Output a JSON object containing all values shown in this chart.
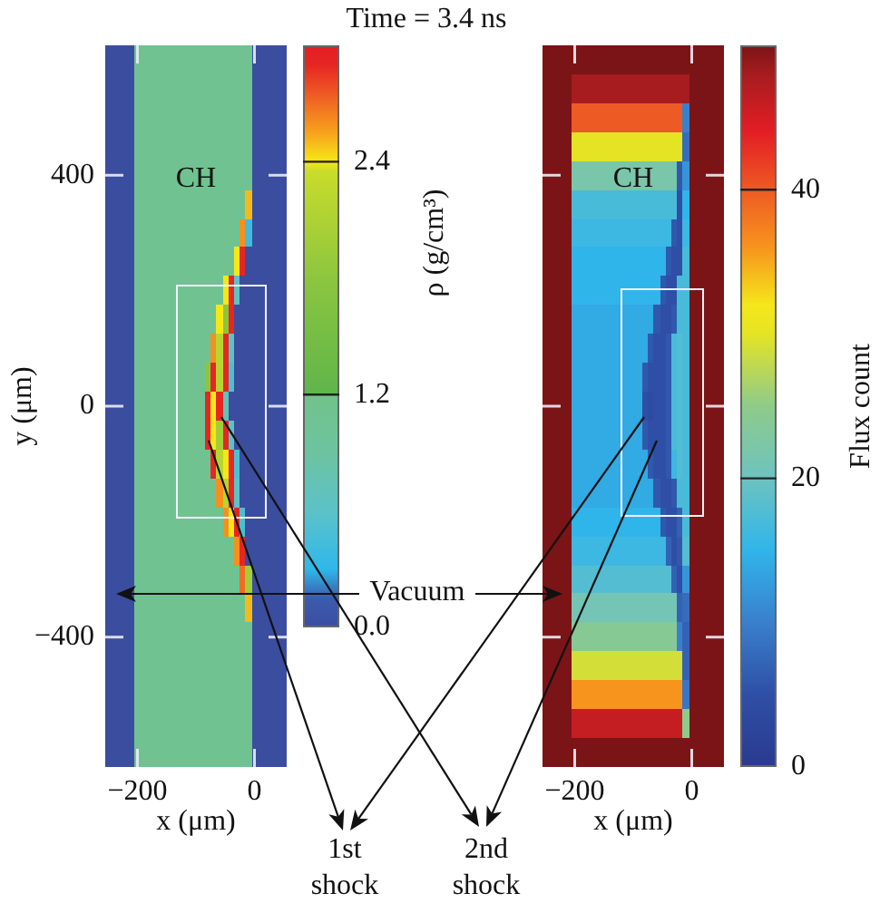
{
  "chart_data": [
    {
      "type": "heatmap",
      "xlabel": "x (μm)",
      "ylabel": "y (μm)",
      "clabel": "ρ (g/cm³)",
      "categories": [
        null,
        null,
        null,
        null,
        null,
        "−200",
        null,
        null,
        null,
        null,
        null,
        null,
        null,
        null,
        null,
        null,
        null,
        null,
        null,
        null,
        null,
        null,
        null,
        null,
        null,
        "0",
        null,
        null,
        null,
        null,
        null
      ],
      "y_categories": [
        null,
        null,
        null,
        null,
        "400",
        null,
        null,
        null,
        null,
        null,
        null,
        null,
        "0",
        null,
        null,
        null,
        null,
        null,
        null,
        null,
        "−400",
        null,
        null,
        null,
        null
      ],
      "cells": [
        [
          0,
          0,
          0,
          0,
          0,
          1.1,
          1.1,
          1.1,
          1.1,
          1.1,
          1.1,
          1.1,
          1.1,
          1.1,
          1.1,
          1.1,
          1.1,
          1.1,
          1.1,
          1.1,
          1.1,
          1.1,
          1.1,
          1.1,
          1.1,
          0,
          0,
          0,
          0,
          0,
          0
        ],
        [
          0,
          0,
          0,
          0,
          0,
          1.1,
          1.1,
          1.1,
          1.1,
          1.1,
          1.1,
          1.1,
          1.1,
          1.1,
          1.1,
          1.1,
          1.1,
          1.1,
          1.1,
          1.1,
          1.1,
          1.1,
          1.1,
          1.1,
          1.1,
          0,
          0,
          0,
          0,
          0,
          0
        ],
        [
          0,
          0,
          0,
          0,
          0,
          1.1,
          1.1,
          1.1,
          1.1,
          1.1,
          1.1,
          1.1,
          1.1,
          1.1,
          1.1,
          1.1,
          1.1,
          1.1,
          1.1,
          1.1,
          1.1,
          1.1,
          1.1,
          1.1,
          1.1,
          0,
          0,
          0,
          0,
          0,
          0
        ],
        [
          0,
          0,
          0,
          0,
          0,
          1.1,
          1.1,
          1.1,
          1.1,
          1.1,
          1.1,
          1.1,
          1.1,
          1.1,
          1.1,
          1.1,
          1.1,
          1.1,
          1.1,
          1.1,
          1.1,
          1.1,
          1.1,
          1.1,
          1.1,
          0,
          0,
          0,
          0,
          0,
          0
        ],
        [
          0,
          0,
          0,
          0,
          0,
          1.1,
          1.1,
          1.1,
          1.1,
          1.1,
          1.1,
          1.1,
          1.1,
          1.1,
          1.1,
          1.1,
          1.1,
          1.1,
          1.1,
          1.1,
          1.1,
          1.1,
          1.1,
          1.1,
          1.1,
          0,
          0,
          0,
          0,
          0,
          0
        ],
        [
          0,
          0,
          0,
          0,
          0,
          1.1,
          1.1,
          1.1,
          1.1,
          1.1,
          1.1,
          1.1,
          1.1,
          1.1,
          1.1,
          1.1,
          1.1,
          1.1,
          1.1,
          1.1,
          1.1,
          1.1,
          1.1,
          1.1,
          2.5,
          0,
          0,
          0,
          0,
          0,
          0
        ],
        [
          0,
          0,
          0,
          0,
          0,
          1.1,
          1.1,
          1.1,
          1.1,
          1.1,
          1.1,
          1.1,
          1.1,
          1.1,
          1.1,
          1.1,
          1.1,
          1.1,
          1.1,
          1.1,
          1.1,
          1.1,
          1.1,
          2.6,
          0.4,
          0,
          0,
          0,
          0,
          0,
          0
        ],
        [
          0,
          0,
          0,
          0,
          0,
          1.1,
          1.1,
          1.1,
          1.1,
          1.1,
          1.1,
          1.1,
          1.1,
          1.1,
          1.1,
          1.1,
          1.1,
          1.1,
          1.1,
          1.1,
          1.1,
          1.1,
          2.4,
          2.9,
          0,
          0,
          0,
          0,
          0,
          0,
          0
        ],
        [
          0,
          0,
          0,
          0,
          0,
          1.1,
          1.1,
          1.1,
          1.1,
          1.1,
          1.1,
          1.1,
          1.1,
          1.1,
          1.1,
          1.1,
          1.1,
          1.1,
          1.1,
          1.1,
          2.4,
          2.9,
          0.6,
          0,
          0,
          0,
          0,
          0,
          0,
          0,
          0
        ],
        [
          0,
          0,
          0,
          0,
          0,
          1.1,
          1.1,
          1.1,
          1.1,
          1.1,
          1.1,
          1.1,
          1.1,
          1.1,
          1.1,
          1.1,
          1.1,
          1.1,
          1.1,
          2.4,
          1.8,
          2.9,
          0,
          0,
          0,
          0,
          0,
          0,
          0,
          0,
          0
        ],
        [
          0,
          0,
          0,
          0,
          0,
          1.1,
          1.1,
          1.1,
          1.1,
          1.1,
          1.1,
          1.1,
          1.1,
          1.1,
          1.1,
          1.1,
          1.1,
          1.1,
          2.6,
          2.2,
          2.9,
          0.6,
          0,
          0,
          0,
          0,
          0,
          0,
          0,
          0,
          0
        ],
        [
          0,
          0,
          0,
          0,
          0,
          1.1,
          1.1,
          1.1,
          1.1,
          1.1,
          1.1,
          1.1,
          1.1,
          1.1,
          1.1,
          1.1,
          1.1,
          1.8,
          2.9,
          2.2,
          2.9,
          0.5,
          0,
          0,
          0,
          0,
          0,
          0,
          0,
          0,
          0
        ],
        [
          0,
          0,
          0,
          0,
          0,
          1.1,
          1.1,
          1.1,
          1.1,
          1.1,
          1.1,
          1.1,
          1.1,
          1.1,
          1.1,
          1.1,
          1.1,
          2.9,
          2.4,
          2.9,
          0.7,
          0,
          0,
          0,
          0,
          0,
          0,
          0,
          0,
          0,
          0
        ],
        [
          0,
          0,
          0,
          0,
          0,
          1.1,
          1.1,
          1.1,
          1.1,
          1.1,
          1.1,
          1.1,
          1.1,
          1.1,
          1.1,
          1.1,
          1.1,
          2.9,
          2.4,
          2.0,
          2.9,
          0.6,
          0,
          0,
          0,
          0,
          0,
          0,
          0,
          0,
          0
        ],
        [
          0,
          0,
          0,
          0,
          0,
          1.1,
          1.1,
          1.1,
          1.1,
          1.1,
          1.1,
          1.1,
          1.1,
          1.1,
          1.1,
          1.1,
          1.1,
          1.1,
          2.9,
          2.2,
          2.4,
          2.9,
          0.5,
          0,
          0,
          0,
          0,
          0,
          0,
          0,
          0
        ],
        [
          0,
          0,
          0,
          0,
          0,
          1.1,
          1.1,
          1.1,
          1.1,
          1.1,
          1.1,
          1.1,
          1.1,
          1.1,
          1.1,
          1.1,
          1.1,
          1.1,
          1.1,
          2.6,
          2.2,
          2.9,
          0.6,
          0,
          0,
          0,
          0,
          0,
          0,
          0,
          0
        ],
        [
          0,
          0,
          0,
          0,
          0,
          1.1,
          1.1,
          1.1,
          1.1,
          1.1,
          1.1,
          1.1,
          1.1,
          1.1,
          1.1,
          1.1,
          1.1,
          1.1,
          1.1,
          1.1,
          2.6,
          2.4,
          2.9,
          0.5,
          0,
          0,
          0,
          0,
          0,
          0,
          0
        ],
        [
          0,
          0,
          0,
          0,
          0,
          1.1,
          1.1,
          1.1,
          1.1,
          1.1,
          1.1,
          1.1,
          1.1,
          1.1,
          1.1,
          1.1,
          1.1,
          1.1,
          1.1,
          1.1,
          1.1,
          1.1,
          2.6,
          2.9,
          0,
          0,
          0,
          0,
          0,
          0,
          0
        ],
        [
          0,
          0,
          0,
          0,
          0,
          1.1,
          1.1,
          1.1,
          1.1,
          1.1,
          1.1,
          1.1,
          1.1,
          1.1,
          1.1,
          1.1,
          1.1,
          1.1,
          1.1,
          1.1,
          1.1,
          1.1,
          1.1,
          2.7,
          2.0,
          0,
          0,
          0,
          0,
          0,
          0
        ],
        [
          0,
          0,
          0,
          0,
          0,
          1.1,
          1.1,
          1.1,
          1.1,
          1.1,
          1.1,
          1.1,
          1.1,
          1.1,
          1.1,
          1.1,
          1.1,
          1.1,
          1.1,
          1.1,
          1.1,
          1.1,
          1.1,
          1.1,
          2.5,
          0,
          0,
          0,
          0,
          0,
          0
        ],
        [
          0,
          0,
          0,
          0,
          0,
          1.1,
          1.1,
          1.1,
          1.1,
          1.1,
          1.1,
          1.1,
          1.1,
          1.1,
          1.1,
          1.1,
          1.1,
          1.1,
          1.1,
          1.1,
          1.1,
          1.1,
          1.1,
          1.1,
          1.1,
          0,
          0,
          0,
          0,
          0,
          0
        ],
        [
          0,
          0,
          0,
          0,
          0,
          1.1,
          1.1,
          1.1,
          1.1,
          1.1,
          1.1,
          1.1,
          1.1,
          1.1,
          1.1,
          1.1,
          1.1,
          1.1,
          1.1,
          1.1,
          1.1,
          1.1,
          1.1,
          1.1,
          1.1,
          0,
          0,
          0,
          0,
          0,
          0
        ],
        [
          0,
          0,
          0,
          0,
          0,
          1.1,
          1.1,
          1.1,
          1.1,
          1.1,
          1.1,
          1.1,
          1.1,
          1.1,
          1.1,
          1.1,
          1.1,
          1.1,
          1.1,
          1.1,
          1.1,
          1.1,
          1.1,
          1.1,
          1.1,
          0,
          0,
          0,
          0,
          0,
          0
        ],
        [
          0,
          0,
          0,
          0,
          0,
          1.1,
          1.1,
          1.1,
          1.1,
          1.1,
          1.1,
          1.1,
          1.1,
          1.1,
          1.1,
          1.1,
          1.1,
          1.1,
          1.1,
          1.1,
          1.1,
          1.1,
          1.1,
          1.1,
          1.1,
          0,
          0,
          0,
          0,
          0,
          0
        ],
        [
          0,
          0,
          0,
          0,
          0,
          1.1,
          1.1,
          1.1,
          1.1,
          1.1,
          1.1,
          1.1,
          1.1,
          1.1,
          1.1,
          1.1,
          1.1,
          1.1,
          1.1,
          1.1,
          1.1,
          1.1,
          1.1,
          1.1,
          1.1,
          0,
          0,
          0,
          0,
          0,
          0
        ]
      ],
      "clim": [
        0,
        3.0
      ],
      "cticks": [
        {
          "value": 0,
          "label": "0.0"
        },
        1.2,
        2.4
      ],
      "annotations": [
        "CH",
        "Vacuum",
        "1st shock",
        "2nd shock"
      ]
    },
    {
      "type": "heatmap",
      "title": "Time = 3.4 ns",
      "xlabel": "x (μm)",
      "clabel": "Flux count",
      "tick_labels": "x",
      "categories": [
        null,
        null,
        null,
        null,
        null,
        "−200",
        null,
        null,
        null,
        null,
        null,
        null,
        null,
        null,
        null,
        null,
        null,
        null,
        null,
        null,
        null,
        null,
        null,
        null,
        null,
        "0",
        null,
        null,
        null,
        null,
        null
      ],
      "y_categories": [
        null,
        null,
        null,
        null,
        "400",
        null,
        null,
        null,
        null,
        null,
        null,
        null,
        "0",
        null,
        null,
        null,
        null,
        null,
        null,
        null,
        "−400",
        null,
        null,
        null,
        null
      ],
      "cells": [
        [
          50,
          50,
          50,
          50,
          50,
          50,
          50,
          50,
          50,
          50,
          50,
          50,
          50,
          50,
          50,
          50,
          50,
          50,
          50,
          50,
          50,
          50,
          50,
          50,
          50,
          50,
          50,
          50,
          50,
          50,
          50
        ],
        [
          50,
          50,
          50,
          50,
          50,
          48,
          48,
          48,
          48,
          48,
          48,
          48,
          48,
          48,
          48,
          48,
          48,
          48,
          48,
          48,
          48,
          48,
          48,
          48,
          48,
          50,
          50,
          50,
          50,
          50,
          50
        ],
        [
          50,
          50,
          50,
          50,
          50,
          40,
          40,
          40,
          40,
          40,
          40,
          40,
          40,
          40,
          40,
          40,
          40,
          40,
          40,
          40,
          40,
          40,
          40,
          40,
          10,
          50,
          50,
          50,
          50,
          50,
          50
        ],
        [
          50,
          50,
          50,
          50,
          50,
          30,
          30,
          30,
          30,
          30,
          30,
          30,
          30,
          30,
          30,
          30,
          30,
          30,
          30,
          30,
          30,
          30,
          30,
          30,
          8,
          50,
          50,
          50,
          50,
          50,
          50
        ],
        [
          50,
          50,
          50,
          50,
          50,
          22,
          22,
          22,
          22,
          22,
          22,
          22,
          22,
          22,
          22,
          22,
          22,
          22,
          22,
          22,
          22,
          22,
          22,
          6,
          12,
          50,
          50,
          50,
          50,
          50,
          50
        ],
        [
          50,
          50,
          50,
          50,
          50,
          17,
          17,
          17,
          17,
          17,
          17,
          17,
          17,
          17,
          17,
          17,
          17,
          17,
          17,
          17,
          17,
          17,
          17,
          5,
          15,
          50,
          50,
          50,
          50,
          50,
          50
        ],
        [
          50,
          50,
          50,
          50,
          50,
          16,
          16,
          16,
          16,
          16,
          16,
          16,
          16,
          16,
          16,
          16,
          16,
          16,
          16,
          16,
          16,
          16,
          6,
          5,
          16,
          50,
          50,
          50,
          50,
          50,
          50
        ],
        [
          50,
          50,
          50,
          50,
          50,
          15,
          15,
          15,
          15,
          15,
          15,
          15,
          15,
          15,
          15,
          15,
          15,
          15,
          15,
          15,
          15,
          6,
          5,
          5,
          17,
          50,
          50,
          50,
          50,
          50,
          50
        ],
        [
          50,
          50,
          50,
          50,
          50,
          15,
          15,
          15,
          15,
          15,
          15,
          15,
          15,
          15,
          15,
          15,
          15,
          15,
          15,
          15,
          6,
          5,
          5,
          17,
          17,
          50,
          50,
          50,
          50,
          50,
          50
        ],
        [
          50,
          50,
          50,
          50,
          50,
          14,
          14,
          14,
          14,
          14,
          14,
          14,
          14,
          14,
          14,
          14,
          14,
          14,
          14,
          6,
          5,
          5,
          6,
          17,
          17,
          50,
          50,
          50,
          50,
          50,
          50
        ],
        [
          50,
          50,
          50,
          50,
          50,
          14,
          14,
          14,
          14,
          14,
          14,
          14,
          14,
          14,
          14,
          14,
          14,
          14,
          6,
          5,
          5,
          6,
          17,
          18,
          17,
          50,
          50,
          50,
          50,
          50,
          50
        ],
        [
          50,
          50,
          50,
          50,
          50,
          14,
          14,
          14,
          14,
          14,
          14,
          14,
          14,
          14,
          14,
          14,
          14,
          6,
          5,
          5,
          5,
          6,
          17,
          18,
          17,
          50,
          50,
          50,
          50,
          50,
          50
        ],
        [
          50,
          50,
          50,
          50,
          50,
          14,
          14,
          14,
          14,
          14,
          14,
          14,
          14,
          14,
          14,
          14,
          14,
          5,
          4,
          5,
          5,
          6,
          17,
          18,
          17,
          50,
          50,
          50,
          50,
          50,
          50
        ],
        [
          50,
          50,
          50,
          50,
          50,
          14,
          14,
          14,
          14,
          14,
          14,
          14,
          14,
          14,
          14,
          14,
          14,
          6,
          5,
          5,
          5,
          6,
          17,
          18,
          17,
          50,
          50,
          50,
          50,
          50,
          50
        ],
        [
          50,
          50,
          50,
          50,
          50,
          14,
          14,
          14,
          14,
          14,
          14,
          14,
          14,
          14,
          14,
          14,
          14,
          14,
          6,
          5,
          5,
          6,
          16,
          18,
          17,
          50,
          50,
          50,
          50,
          50,
          50
        ],
        [
          50,
          50,
          50,
          50,
          50,
          14,
          14,
          14,
          14,
          14,
          14,
          14,
          14,
          14,
          14,
          14,
          14,
          14,
          14,
          6,
          5,
          5,
          6,
          17,
          17,
          50,
          50,
          50,
          50,
          50,
          50
        ],
        [
          50,
          50,
          50,
          50,
          50,
          15,
          15,
          15,
          15,
          15,
          15,
          15,
          15,
          15,
          15,
          15,
          15,
          15,
          15,
          15,
          6,
          5,
          5,
          7,
          17,
          50,
          50,
          50,
          50,
          50,
          50
        ],
        [
          50,
          50,
          50,
          50,
          50,
          16,
          16,
          16,
          16,
          16,
          16,
          16,
          16,
          16,
          16,
          16,
          16,
          16,
          16,
          16,
          16,
          7,
          5,
          6,
          18,
          50,
          50,
          50,
          50,
          50,
          50
        ],
        [
          50,
          50,
          50,
          50,
          50,
          18,
          18,
          18,
          18,
          18,
          18,
          18,
          18,
          18,
          18,
          18,
          18,
          18,
          18,
          18,
          18,
          18,
          7,
          5,
          12,
          50,
          50,
          50,
          50,
          50,
          50
        ],
        [
          50,
          50,
          50,
          50,
          50,
          21,
          21,
          21,
          21,
          21,
          21,
          21,
          21,
          21,
          21,
          21,
          21,
          21,
          21,
          21,
          21,
          21,
          21,
          7,
          8,
          50,
          50,
          50,
          50,
          50,
          50
        ],
        [
          50,
          50,
          50,
          50,
          50,
          24,
          24,
          24,
          24,
          24,
          24,
          24,
          24,
          24,
          24,
          24,
          24,
          24,
          24,
          24,
          24,
          24,
          24,
          10,
          7,
          50,
          50,
          50,
          50,
          50,
          50
        ],
        [
          50,
          50,
          50,
          50,
          50,
          29,
          29,
          29,
          29,
          29,
          29,
          29,
          29,
          29,
          29,
          29,
          29,
          29,
          29,
          29,
          29,
          29,
          29,
          29,
          7,
          50,
          50,
          50,
          50,
          50,
          50
        ],
        [
          50,
          50,
          50,
          50,
          50,
          36,
          36,
          36,
          36,
          36,
          36,
          36,
          36,
          36,
          36,
          36,
          36,
          36,
          36,
          36,
          36,
          36,
          36,
          36,
          9,
          50,
          50,
          50,
          50,
          50,
          50
        ],
        [
          50,
          50,
          50,
          50,
          50,
          46,
          46,
          46,
          46,
          46,
          46,
          46,
          46,
          46,
          46,
          46,
          46,
          46,
          46,
          46,
          46,
          46,
          46,
          46,
          25,
          50,
          50,
          50,
          50,
          50,
          50
        ],
        [
          50,
          50,
          50,
          50,
          50,
          50,
          50,
          50,
          50,
          50,
          50,
          50,
          50,
          50,
          50,
          50,
          50,
          50,
          50,
          50,
          50,
          50,
          50,
          50,
          50,
          50,
          50,
          50,
          50,
          50,
          50
        ]
      ],
      "clim": [
        0,
        50
      ],
      "cticks": [
        0,
        20,
        40
      ],
      "annotations": [
        "CH"
      ]
    }
  ]
}
